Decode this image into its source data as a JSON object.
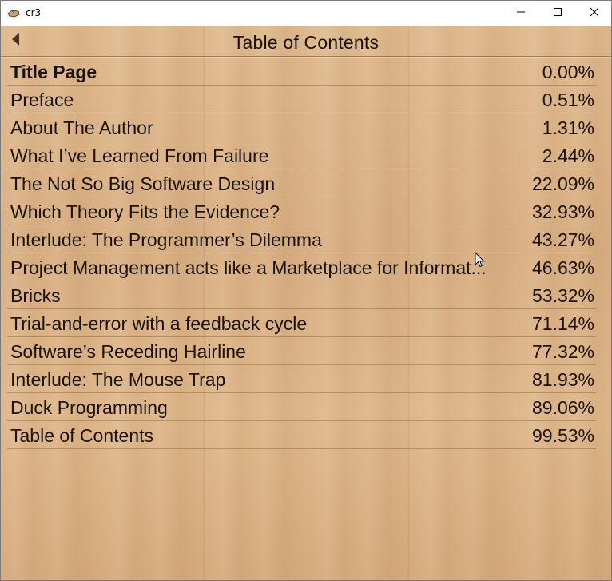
{
  "window": {
    "app_title": "cr3",
    "icons": {
      "app": "cr3-app-icon",
      "minimize": "minimize-icon",
      "maximize": "maximize-icon",
      "close": "close-icon"
    }
  },
  "header": {
    "title": "Table of Contents",
    "back_icon": "back-arrow-icon"
  },
  "toc": {
    "items": [
      {
        "title": "Title Page",
        "percent": "0.00%",
        "bold": true
      },
      {
        "title": "Preface",
        "percent": "0.51%"
      },
      {
        "title": "About The Author",
        "percent": "1.31%"
      },
      {
        "title": "What I’ve Learned From Failure",
        "percent": "2.44%"
      },
      {
        "title": "The Not So Big Software Design",
        "percent": "22.09%"
      },
      {
        "title": "Which Theory Fits the Evidence?",
        "percent": "32.93%"
      },
      {
        "title": "Interlude: The Programmer’s Dilemma",
        "percent": "43.27%"
      },
      {
        "title": "Project Management acts like a Marketplace for Informat...",
        "percent": "46.63%"
      },
      {
        "title": "Bricks",
        "percent": "53.32%"
      },
      {
        "title": "Trial-and-error with a feedback cycle",
        "percent": "71.14%"
      },
      {
        "title": "Software’s Receding Hairline",
        "percent": "77.32%"
      },
      {
        "title": "Interlude: The Mouse Trap",
        "percent": "81.93%"
      },
      {
        "title": "Duck Programming",
        "percent": "89.06%"
      },
      {
        "title": "Table of Contents",
        "percent": "99.53%"
      }
    ]
  },
  "colors": {
    "wood_background": "#dcb487",
    "text": "#1a1208",
    "back_arrow": "#4a3520"
  }
}
